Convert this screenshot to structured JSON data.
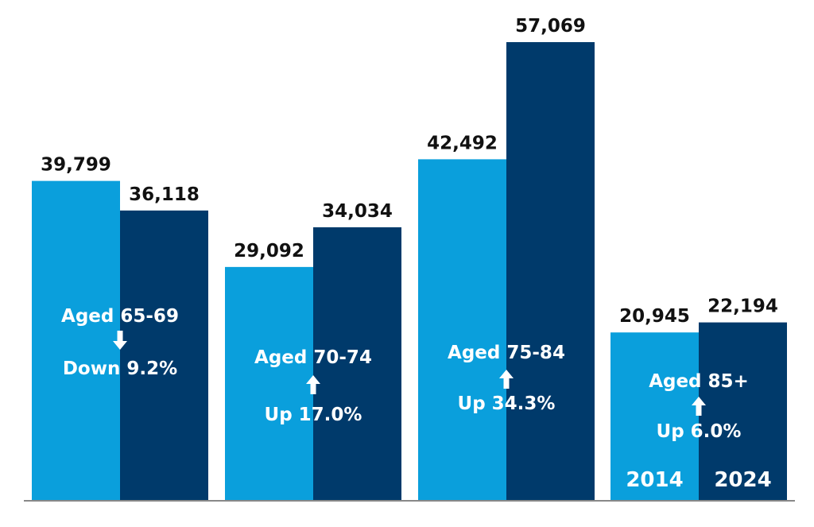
{
  "chart_data": {
    "type": "bar",
    "categories": [
      "Aged 65-69",
      "Aged 70-74",
      "Aged 75-84",
      "Aged 85+"
    ],
    "series": [
      {
        "name": "2014",
        "values": [
          39799,
          29092,
          42492,
          20945
        ],
        "color": "#0A9FDC"
      },
      {
        "name": "2024",
        "values": [
          36118,
          34034,
          57069,
          22194
        ],
        "color": "#003A6B"
      }
    ],
    "value_labels": [
      [
        "39,799",
        "36,118"
      ],
      [
        "29,092",
        "34,034"
      ],
      [
        "42,492",
        "57,069"
      ],
      [
        "20,945",
        "22,194"
      ]
    ],
    "changes": [
      {
        "text": "Down 9.2%",
        "direction": "down"
      },
      {
        "text": "Up 17.0%",
        "direction": "up"
      },
      {
        "text": "Up 34.3%",
        "direction": "up"
      },
      {
        "text": "Up 6.0%",
        "direction": "up"
      }
    ],
    "ylim": [
      0,
      60000
    ],
    "grid": false,
    "legend_placement": "inside-last-group-bottom",
    "axis_color": "#888888"
  }
}
